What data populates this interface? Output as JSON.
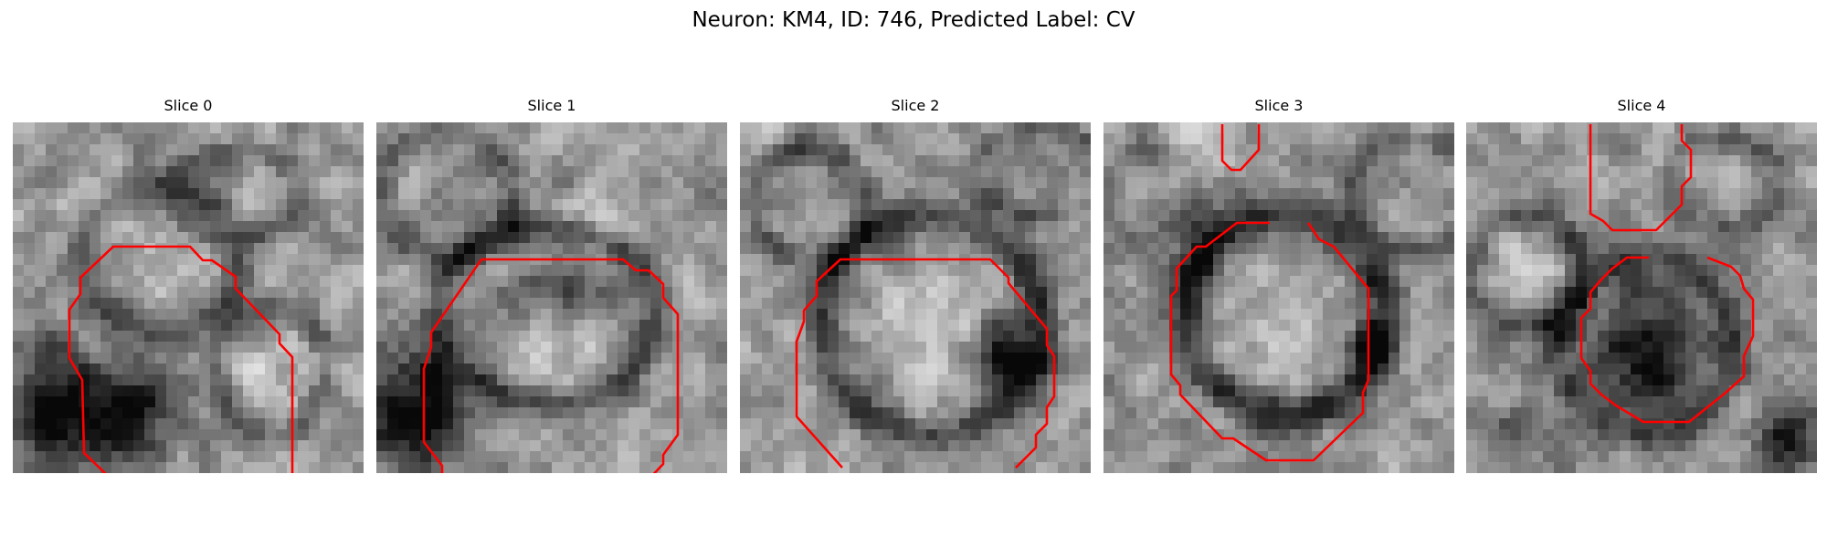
{
  "figure": {
    "title": "Neuron: KM4, ID: 746, Predicted Label: CV"
  },
  "contour_color": "#ff0000",
  "slices": [
    {
      "title": "Slice 0"
    },
    {
      "title": "Slice 1"
    },
    {
      "title": "Slice 2"
    },
    {
      "title": "Slice 3"
    },
    {
      "title": "Slice 4"
    }
  ]
}
